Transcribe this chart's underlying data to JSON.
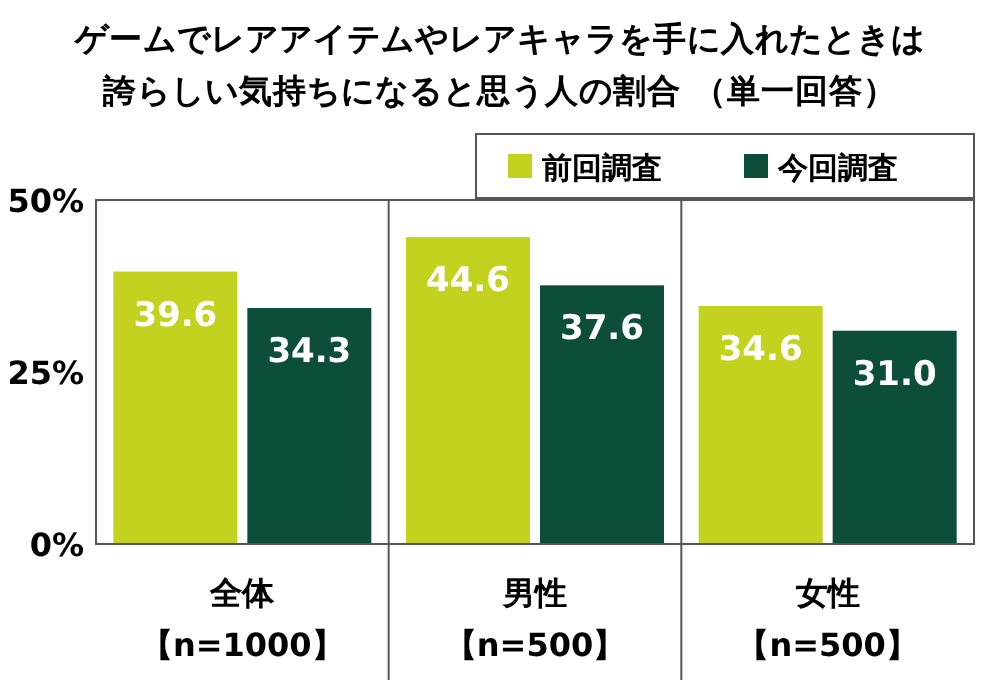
{
  "chart_data": {
    "type": "bar",
    "title": "ゲームでレアアイテムやレアキャラを手に入れたときは誇らしい気持ちになると思う人の割合 （単一回答）",
    "categories": [
      "全体【n=1000】",
      "男性【n=500】",
      "女性【n=500】"
    ],
    "series": [
      {
        "name": "前回調査",
        "color": "#c3d21e",
        "values": [
          39.6,
          44.6,
          34.6
        ],
        "value_labels": [
          "39.6",
          "44.6",
          "34.6"
        ]
      },
      {
        "name": "今回調査",
        "color": "#0d4d3c",
        "values": [
          34.3,
          37.6,
          31.0
        ],
        "value_labels": [
          "34.3",
          "37.6",
          "31.0"
        ]
      }
    ],
    "ylim": [
      0,
      50
    ],
    "yticks": [
      {
        "value": 0,
        "label": "0%"
      },
      {
        "value": 25,
        "label": "25%"
      },
      {
        "value": 50,
        "label": "50%"
      }
    ],
    "legend": "top right",
    "grid": false
  }
}
